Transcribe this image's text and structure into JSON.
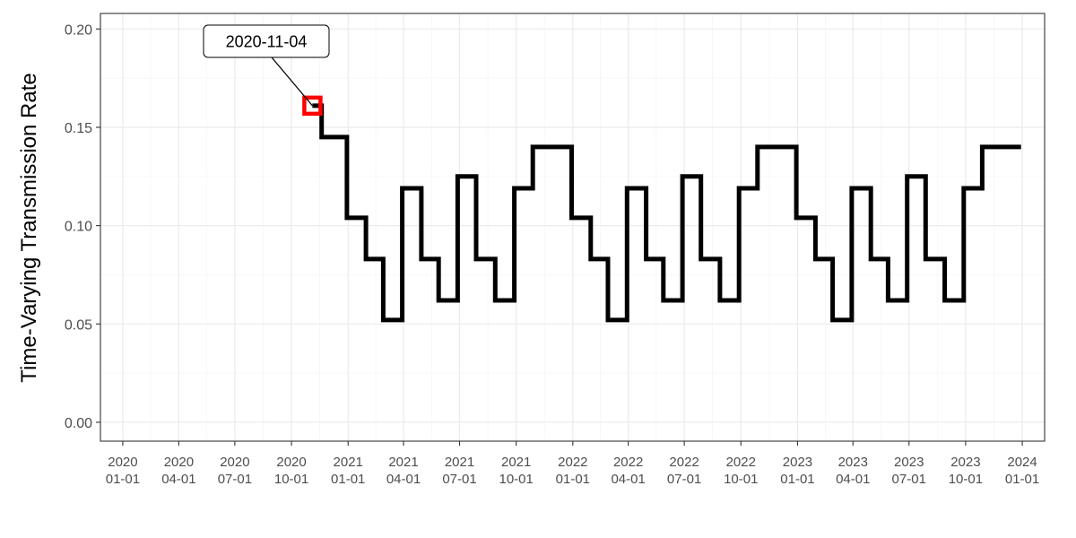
{
  "chart_data": {
    "type": "line",
    "step": "hv",
    "title": "",
    "xlabel": "",
    "ylabel": "Time-Varying Transmission Rate",
    "xlim": [
      "2020-01-01",
      "2024-01-01"
    ],
    "ylim": [
      0.0,
      0.2
    ],
    "grid": true,
    "y_ticks": [
      0.0,
      0.05,
      0.1,
      0.15,
      0.2
    ],
    "y_tick_labels": [
      "0.00",
      "0.05",
      "0.10",
      "0.15",
      "0.20"
    ],
    "x_ticks": [
      {
        "date": "2020-01-01",
        "line1": "2020",
        "line2": "01-01"
      },
      {
        "date": "2020-04-01",
        "line1": "2020",
        "line2": "04-01"
      },
      {
        "date": "2020-07-01",
        "line1": "2020",
        "line2": "07-01"
      },
      {
        "date": "2020-10-01",
        "line1": "2020",
        "line2": "10-01"
      },
      {
        "date": "2021-01-01",
        "line1": "2021",
        "line2": "01-01"
      },
      {
        "date": "2021-04-01",
        "line1": "2021",
        "line2": "04-01"
      },
      {
        "date": "2021-07-01",
        "line1": "2021",
        "line2": "07-01"
      },
      {
        "date": "2021-10-01",
        "line1": "2021",
        "line2": "10-01"
      },
      {
        "date": "2022-01-01",
        "line1": "2022",
        "line2": "01-01"
      },
      {
        "date": "2022-04-01",
        "line1": "2022",
        "line2": "04-01"
      },
      {
        "date": "2022-07-01",
        "line1": "2022",
        "line2": "07-01"
      },
      {
        "date": "2022-10-01",
        "line1": "2022",
        "line2": "10-01"
      },
      {
        "date": "2023-01-01",
        "line1": "2023",
        "line2": "01-01"
      },
      {
        "date": "2023-04-01",
        "line1": "2023",
        "line2": "04-01"
      },
      {
        "date": "2023-07-01",
        "line1": "2023",
        "line2": "07-01"
      },
      {
        "date": "2023-10-01",
        "line1": "2023",
        "line2": "10-01"
      },
      {
        "date": "2024-01-01",
        "line1": "2024",
        "line2": "01-01"
      }
    ],
    "series": [
      {
        "color": "#000000",
        "points": [
          {
            "x": "2020-11-04",
            "y": 0.161
          },
          {
            "x": "2020-11-19",
            "y": 0.145
          },
          {
            "x": "2020-12-30",
            "y": 0.104
          },
          {
            "x": "2021-01-30",
            "y": 0.083
          },
          {
            "x": "2021-02-27",
            "y": 0.052
          },
          {
            "x": "2021-03-30",
            "y": 0.119
          },
          {
            "x": "2021-04-30",
            "y": 0.083
          },
          {
            "x": "2021-05-28",
            "y": 0.062
          },
          {
            "x": "2021-06-28",
            "y": 0.125
          },
          {
            "x": "2021-07-28",
            "y": 0.083
          },
          {
            "x": "2021-08-28",
            "y": 0.062
          },
          {
            "x": "2021-09-28",
            "y": 0.119
          },
          {
            "x": "2021-10-28",
            "y": 0.14
          },
          {
            "x": "2021-12-30",
            "y": 0.104
          },
          {
            "x": "2022-01-30",
            "y": 0.083
          },
          {
            "x": "2022-02-27",
            "y": 0.052
          },
          {
            "x": "2022-03-30",
            "y": 0.119
          },
          {
            "x": "2022-04-30",
            "y": 0.083
          },
          {
            "x": "2022-05-28",
            "y": 0.062
          },
          {
            "x": "2022-06-28",
            "y": 0.125
          },
          {
            "x": "2022-07-28",
            "y": 0.083
          },
          {
            "x": "2022-08-28",
            "y": 0.062
          },
          {
            "x": "2022-09-28",
            "y": 0.119
          },
          {
            "x": "2022-10-28",
            "y": 0.14
          },
          {
            "x": "2022-12-30",
            "y": 0.104
          },
          {
            "x": "2023-01-30",
            "y": 0.083
          },
          {
            "x": "2023-02-27",
            "y": 0.052
          },
          {
            "x": "2023-03-30",
            "y": 0.119
          },
          {
            "x": "2023-04-30",
            "y": 0.083
          },
          {
            "x": "2023-05-28",
            "y": 0.062
          },
          {
            "x": "2023-06-28",
            "y": 0.125
          },
          {
            "x": "2023-07-28",
            "y": 0.083
          },
          {
            "x": "2023-08-28",
            "y": 0.062
          },
          {
            "x": "2023-09-28",
            "y": 0.119
          },
          {
            "x": "2023-10-28",
            "y": 0.14
          },
          {
            "x": "2023-12-30",
            "y": 0.14
          }
        ]
      }
    ],
    "highlight": {
      "x": "2020-11-04",
      "y": 0.161,
      "color": "#ff0000"
    },
    "annotation": {
      "text": "2020-11-04",
      "x": "2020-11-04",
      "y": 0.161
    }
  }
}
